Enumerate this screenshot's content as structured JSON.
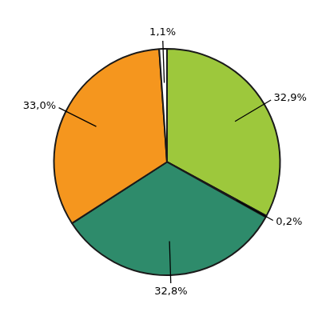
{
  "chart_data": {
    "type": "pie",
    "values": [
      32.9,
      0.2,
      32.8,
      33.0,
      1.1
    ],
    "value_labels": [
      "32,9%",
      "0,2%",
      "32,8%",
      "33,0%",
      "1,1%"
    ],
    "colors": [
      "#9DC83C",
      "#C8D8F0",
      "#2E8B6B",
      "#F5961E",
      "#FFFFFF"
    ],
    "data_labels": true,
    "legend": false
  }
}
